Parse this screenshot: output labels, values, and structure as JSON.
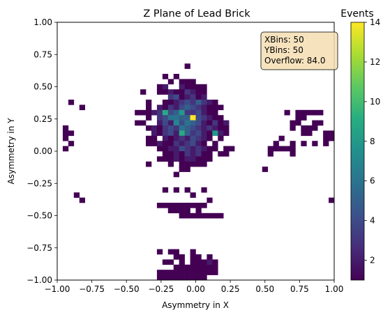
{
  "chart_data": {
    "type": "heatmap",
    "title": "Z Plane of Lead Brick",
    "xlabel": "Asymmetry in X",
    "ylabel": "Asymmetry in Y",
    "xlim": [
      -1.0,
      1.0
    ],
    "ylim": [
      -1.0,
      1.0
    ],
    "xbins": 50,
    "ybins": 50,
    "bin_width": 0.04,
    "x_ticks": [
      "-1.00",
      "-0.75",
      "-0.50",
      "-0.25",
      "0.00",
      "0.25",
      "0.50",
      "0.75",
      "1.00"
    ],
    "y_ticks": [
      "-1.00",
      "-0.75",
      "-0.50",
      "-0.25",
      "0.00",
      "0.25",
      "0.50",
      "0.75",
      "1.00"
    ],
    "colorbar": {
      "label": "Events",
      "colormap": "viridis",
      "range": [
        1,
        14
      ],
      "ticks": [
        "2",
        "4",
        "6",
        "8",
        "10",
        "12",
        "14"
      ]
    },
    "stats_box": {
      "lines": [
        "XBins: 50",
        "YBins: 50",
        "Overflow: 84.0"
      ]
    },
    "cells_format": "[x_bin_index, y_bin_index, events]; bin 0 starts at -1.0, bin width 0.04",
    "cells": [
      [
        23,
        41,
        1
      ],
      [
        19,
        39,
        1
      ],
      [
        21,
        39,
        1
      ],
      [
        20,
        38,
        1
      ],
      [
        22,
        38,
        1
      ],
      [
        23,
        38,
        1
      ],
      [
        24,
        38,
        1
      ],
      [
        18,
        37,
        1
      ],
      [
        19,
        37,
        2
      ],
      [
        22,
        37,
        2
      ],
      [
        23,
        37,
        1
      ],
      [
        24,
        37,
        1
      ],
      [
        25,
        37,
        1
      ],
      [
        26,
        37,
        1
      ],
      [
        15,
        36,
        1
      ],
      [
        18,
        36,
        1
      ],
      [
        19,
        36,
        1
      ],
      [
        20,
        36,
        2
      ],
      [
        21,
        36,
        1
      ],
      [
        22,
        36,
        1
      ],
      [
        23,
        36,
        3
      ],
      [
        24,
        36,
        2
      ],
      [
        25,
        36,
        1
      ],
      [
        26,
        36,
        1
      ],
      [
        20,
        35,
        3
      ],
      [
        21,
        35,
        4
      ],
      [
        22,
        35,
        1
      ],
      [
        23,
        35,
        2
      ],
      [
        24,
        35,
        3
      ],
      [
        25,
        35,
        1
      ],
      [
        26,
        35,
        2
      ],
      [
        16,
        34,
        1
      ],
      [
        19,
        34,
        1
      ],
      [
        20,
        34,
        1
      ],
      [
        21,
        34,
        2
      ],
      [
        22,
        34,
        3
      ],
      [
        23,
        34,
        4
      ],
      [
        24,
        34,
        3
      ],
      [
        25,
        34,
        5
      ],
      [
        26,
        34,
        3
      ],
      [
        27,
        34,
        2
      ],
      [
        28,
        34,
        1
      ],
      [
        16,
        33,
        1
      ],
      [
        18,
        33,
        2
      ],
      [
        19,
        33,
        1
      ],
      [
        20,
        33,
        3
      ],
      [
        21,
        33,
        2
      ],
      [
        22,
        33,
        4
      ],
      [
        23,
        33,
        5
      ],
      [
        24,
        33,
        4
      ],
      [
        25,
        33,
        3
      ],
      [
        26,
        33,
        2
      ],
      [
        27,
        33,
        1
      ],
      [
        28,
        33,
        1
      ],
      [
        14,
        32,
        1
      ],
      [
        15,
        32,
        1
      ],
      [
        16,
        32,
        1
      ],
      [
        17,
        32,
        2
      ],
      [
        18,
        32,
        3
      ],
      [
        19,
        32,
        9
      ],
      [
        20,
        32,
        4
      ],
      [
        21,
        32,
        5
      ],
      [
        22,
        32,
        8
      ],
      [
        23,
        32,
        3
      ],
      [
        24,
        32,
        3
      ],
      [
        25,
        32,
        4
      ],
      [
        26,
        32,
        2
      ],
      [
        27,
        32,
        1
      ],
      [
        28,
        32,
        1
      ],
      [
        16,
        31,
        1
      ],
      [
        18,
        31,
        3
      ],
      [
        19,
        31,
        4
      ],
      [
        20,
        31,
        6
      ],
      [
        21,
        31,
        6
      ],
      [
        22,
        31,
        5
      ],
      [
        23,
        31,
        5
      ],
      [
        24,
        31,
        14
      ],
      [
        25,
        31,
        4
      ],
      [
        26,
        31,
        3
      ],
      [
        27,
        31,
        2
      ],
      [
        28,
        31,
        1
      ],
      [
        29,
        31,
        1
      ],
      [
        14,
        30,
        1
      ],
      [
        15,
        30,
        1
      ],
      [
        18,
        30,
        2
      ],
      [
        19,
        30,
        4
      ],
      [
        20,
        30,
        2
      ],
      [
        21,
        30,
        7
      ],
      [
        22,
        30,
        4
      ],
      [
        23,
        30,
        6
      ],
      [
        24,
        30,
        5
      ],
      [
        25,
        30,
        4
      ],
      [
        26,
        30,
        2
      ],
      [
        27,
        30,
        1
      ],
      [
        28,
        30,
        3
      ],
      [
        29,
        30,
        1
      ],
      [
        30,
        30,
        2
      ],
      [
        16,
        29,
        1
      ],
      [
        17,
        29,
        2
      ],
      [
        18,
        29,
        1
      ],
      [
        19,
        29,
        3
      ],
      [
        20,
        29,
        4
      ],
      [
        21,
        29,
        3
      ],
      [
        22,
        29,
        6
      ],
      [
        23,
        29,
        5
      ],
      [
        24,
        29,
        4
      ],
      [
        25,
        29,
        3
      ],
      [
        26,
        29,
        2
      ],
      [
        27,
        29,
        3
      ],
      [
        28,
        29,
        2
      ],
      [
        29,
        29,
        1
      ],
      [
        30,
        29,
        1
      ],
      [
        17,
        28,
        2
      ],
      [
        18,
        28,
        1
      ],
      [
        19,
        28,
        3
      ],
      [
        20,
        28,
        4
      ],
      [
        21,
        28,
        2
      ],
      [
        22,
        28,
        9
      ],
      [
        23,
        28,
        5
      ],
      [
        24,
        28,
        3
      ],
      [
        25,
        28,
        4
      ],
      [
        26,
        28,
        2
      ],
      [
        27,
        28,
        1
      ],
      [
        28,
        28,
        8
      ],
      [
        29,
        28,
        2
      ],
      [
        30,
        28,
        1
      ],
      [
        16,
        27,
        1
      ],
      [
        17,
        27,
        1
      ],
      [
        19,
        27,
        2
      ],
      [
        20,
        27,
        1
      ],
      [
        21,
        27,
        2
      ],
      [
        22,
        27,
        3
      ],
      [
        23,
        27,
        2
      ],
      [
        24,
        27,
        4
      ],
      [
        25,
        27,
        3
      ],
      [
        26,
        27,
        2
      ],
      [
        27,
        27,
        1
      ],
      [
        29,
        27,
        1
      ],
      [
        16,
        26,
        1
      ],
      [
        17,
        26,
        1
      ],
      [
        18,
        26,
        2
      ],
      [
        19,
        26,
        1
      ],
      [
        20,
        26,
        1
      ],
      [
        21,
        26,
        3
      ],
      [
        22,
        26,
        2
      ],
      [
        23,
        26,
        3
      ],
      [
        24,
        26,
        4
      ],
      [
        25,
        26,
        2
      ],
      [
        26,
        26,
        1
      ],
      [
        28,
        26,
        1
      ],
      [
        18,
        25,
        1
      ],
      [
        19,
        25,
        1
      ],
      [
        20,
        25,
        2
      ],
      [
        21,
        25,
        2
      ],
      [
        22,
        25,
        4
      ],
      [
        23,
        25,
        3
      ],
      [
        24,
        25,
        2
      ],
      [
        25,
        25,
        3
      ],
      [
        26,
        25,
        2
      ],
      [
        27,
        25,
        1
      ],
      [
        28,
        25,
        1
      ],
      [
        30,
        25,
        1
      ],
      [
        31,
        25,
        1
      ],
      [
        19,
        24,
        1
      ],
      [
        20,
        24,
        1
      ],
      [
        21,
        24,
        2
      ],
      [
        22,
        24,
        1
      ],
      [
        23,
        24,
        3
      ],
      [
        24,
        24,
        2
      ],
      [
        25,
        24,
        3
      ],
      [
        26,
        24,
        1
      ],
      [
        27,
        24,
        1
      ],
      [
        29,
        24,
        1
      ],
      [
        30,
        24,
        1
      ],
      [
        18,
        23,
        1
      ],
      [
        19,
        23,
        1
      ],
      [
        20,
        23,
        1
      ],
      [
        21,
        23,
        2
      ],
      [
        22,
        23,
        1
      ],
      [
        23,
        23,
        2
      ],
      [
        24,
        23,
        2
      ],
      [
        25,
        23,
        1
      ],
      [
        26,
        23,
        1
      ],
      [
        27,
        23,
        1
      ],
      [
        16,
        22,
        1
      ],
      [
        20,
        22,
        1
      ],
      [
        22,
        22,
        1
      ],
      [
        23,
        22,
        1
      ],
      [
        24,
        22,
        1
      ],
      [
        25,
        22,
        1
      ],
      [
        26,
        22,
        1
      ],
      [
        22,
        21,
        1
      ],
      [
        23,
        21,
        1
      ],
      [
        21,
        20,
        1
      ],
      [
        19,
        17,
        1
      ],
      [
        21,
        17,
        1
      ],
      [
        23,
        17,
        1
      ],
      [
        26,
        17,
        1
      ],
      [
        24,
        16,
        1
      ],
      [
        27,
        15,
        1
      ],
      [
        26,
        14,
        1
      ],
      [
        25,
        13,
        1
      ],
      [
        29,
        33,
        1
      ],
      [
        1,
        29,
        1
      ],
      [
        1,
        28,
        1
      ],
      [
        2,
        28,
        1
      ],
      [
        1,
        27,
        1
      ],
      [
        2,
        26,
        1
      ],
      [
        1,
        25,
        1
      ],
      [
        4,
        33,
        1
      ],
      [
        2,
        34,
        1
      ],
      [
        3,
        16,
        1
      ],
      [
        4,
        15,
        1
      ],
      [
        37,
        21,
        1
      ],
      [
        38,
        24,
        1
      ],
      [
        38,
        25,
        1
      ],
      [
        39,
        26,
        1
      ],
      [
        39,
        25,
        1
      ],
      [
        40,
        25,
        1
      ],
      [
        41,
        25,
        1
      ],
      [
        42,
        25,
        1
      ],
      [
        42,
        24,
        1
      ],
      [
        42,
        29,
        1
      ],
      [
        44,
        29,
        1
      ],
      [
        45,
        29,
        1
      ],
      [
        46,
        29,
        1
      ],
      [
        45,
        28,
        1
      ],
      [
        44,
        28,
        1
      ],
      [
        40,
        27,
        1
      ],
      [
        42,
        26,
        1
      ],
      [
        44,
        26,
        1
      ],
      [
        46,
        26,
        1
      ],
      [
        48,
        26,
        1
      ],
      [
        48,
        27,
        1
      ],
      [
        49,
        27,
        1
      ],
      [
        48,
        28,
        1
      ],
      [
        49,
        28,
        1
      ],
      [
        49,
        15,
        1
      ],
      [
        42,
        30,
        1
      ],
      [
        43,
        30,
        1
      ],
      [
        46,
        30,
        1
      ],
      [
        47,
        30,
        1
      ],
      [
        45,
        29,
        1
      ],
      [
        42,
        29,
        1
      ],
      [
        43,
        31,
        1
      ],
      [
        44,
        31,
        1
      ],
      [
        41,
        32,
        1
      ],
      [
        43,
        32,
        1
      ],
      [
        44,
        32,
        1
      ],
      [
        45,
        32,
        1
      ],
      [
        46,
        32,
        1
      ],
      [
        47,
        32,
        1
      ],
      [
        22,
        12,
        1
      ],
      [
        23,
        12,
        1
      ],
      [
        24,
        12,
        1
      ],
      [
        25,
        12,
        1
      ],
      [
        26,
        12,
        1
      ],
      [
        27,
        12,
        1
      ],
      [
        28,
        12,
        1
      ],
      [
        29,
        12,
        1
      ],
      [
        20,
        13,
        1
      ],
      [
        21,
        13,
        1
      ],
      [
        22,
        13,
        1
      ],
      [
        23,
        13,
        1
      ],
      [
        18,
        14,
        1
      ],
      [
        19,
        14,
        1
      ],
      [
        20,
        14,
        1
      ],
      [
        21,
        14,
        1
      ],
      [
        22,
        14,
        1
      ],
      [
        23,
        14,
        1
      ],
      [
        24,
        14,
        1
      ],
      [
        25,
        14,
        1
      ],
      [
        18,
        5,
        1
      ],
      [
        20,
        5,
        1
      ],
      [
        21,
        4,
        1
      ],
      [
        22,
        4,
        1
      ],
      [
        24,
        5,
        1
      ],
      [
        24,
        4,
        1
      ],
      [
        25,
        4,
        1
      ],
      [
        25,
        3,
        1
      ],
      [
        26,
        3,
        1
      ],
      [
        26,
        2,
        1
      ],
      [
        27,
        2,
        1
      ],
      [
        28,
        2,
        1
      ],
      [
        28,
        1,
        1
      ],
      [
        19,
        3,
        1
      ],
      [
        20,
        3,
        1
      ],
      [
        21,
        2,
        1
      ],
      [
        22,
        2,
        1
      ],
      [
        23,
        2,
        1
      ],
      [
        24,
        2,
        1
      ],
      [
        25,
        2,
        1
      ],
      [
        18,
        1,
        1
      ],
      [
        19,
        1,
        1
      ],
      [
        20,
        1,
        1
      ],
      [
        21,
        1,
        1
      ],
      [
        22,
        1,
        1
      ],
      [
        23,
        1,
        1
      ],
      [
        24,
        1,
        1
      ],
      [
        25,
        1,
        1
      ],
      [
        26,
        1,
        1
      ],
      [
        27,
        1,
        1
      ],
      [
        18,
        0,
        1
      ],
      [
        19,
        0,
        1
      ],
      [
        20,
        0,
        1
      ],
      [
        21,
        0,
        1
      ],
      [
        22,
        0,
        1
      ],
      [
        23,
        0,
        1
      ],
      [
        24,
        0,
        1
      ],
      [
        25,
        0,
        1
      ],
      [
        26,
        0,
        1
      ],
      [
        20,
        5,
        1
      ],
      [
        21,
        5,
        1
      ],
      [
        22,
        3,
        1
      ],
      [
        24,
        3,
        1
      ],
      [
        27,
        3,
        2
      ],
      [
        28,
        3,
        1
      ],
      [
        27,
        4,
        1
      ]
    ]
  }
}
